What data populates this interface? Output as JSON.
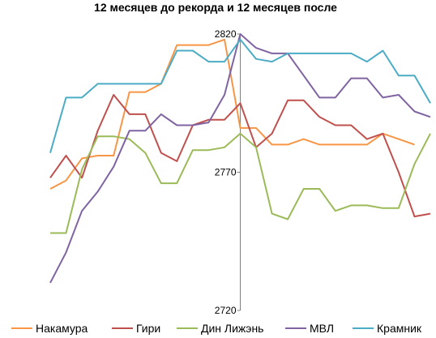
{
  "chart_data": {
    "type": "line",
    "title": "12 месяцев до рекорда и 12 месяцев после",
    "x": [
      -12,
      -11,
      -10,
      -9,
      -8,
      -7,
      -6,
      -5,
      -4,
      -3,
      -2,
      -1,
      0,
      1,
      2,
      3,
      4,
      5,
      6,
      7,
      8,
      9,
      10,
      11,
      12
    ],
    "ylim": [
      2720,
      2820
    ],
    "yticks": [
      2720,
      2770,
      2820
    ],
    "xlabel": "",
    "ylabel": "",
    "grid": false,
    "legend_position": "bottom",
    "series": [
      {
        "name": "Накамура",
        "color": "#F79646",
        "values": [
          2764,
          2767,
          2775,
          2776,
          2776,
          2799,
          2799,
          2802,
          2816,
          2816,
          2816,
          2818,
          2786,
          2786,
          2780,
          2780,
          2782,
          2780,
          2780,
          2780,
          2780,
          2784,
          2782,
          2780,
          null
        ]
      },
      {
        "name": "Гири",
        "color": "#C0504D",
        "values": [
          2768,
          2776,
          2768,
          2785,
          2798,
          2791,
          2791,
          2777,
          2774,
          2787,
          2789,
          2789,
          2795,
          2779,
          2784,
          2796,
          2796,
          2790,
          2787,
          2787,
          2782,
          2784,
          2770,
          2754,
          2755
        ]
      },
      {
        "name": "Дин Лижэнь",
        "color": "#9BBB59",
        "values": [
          2748,
          2748,
          2771,
          2783,
          2783,
          2782,
          2777,
          2766,
          2766,
          2778,
          2778,
          2779,
          2784,
          2779,
          2755,
          2753,
          2764,
          2764,
          2756,
          2758,
          2758,
          2757,
          2757,
          2773,
          2784
        ]
      },
      {
        "name": "МВЛ",
        "color": "#8064A2",
        "values": [
          2730,
          2741,
          2756,
          2763,
          2772,
          2785,
          2785,
          2791,
          2787,
          2787,
          2788,
          2798,
          2820,
          2815,
          2813,
          2813,
          2805,
          2797,
          2797,
          2804,
          2804,
          2797,
          2798,
          2792,
          2790
        ]
      },
      {
        "name": "Крамник",
        "color": "#4BACC6",
        "values": [
          2777,
          2797,
          2797,
          2802,
          2802,
          2802,
          2802,
          2802,
          2814,
          2814,
          2810,
          2810,
          2818,
          2811,
          2810,
          2813,
          2813,
          2813,
          2813,
          2813,
          2810,
          2814,
          2805,
          2805,
          2795
        ]
      }
    ]
  }
}
